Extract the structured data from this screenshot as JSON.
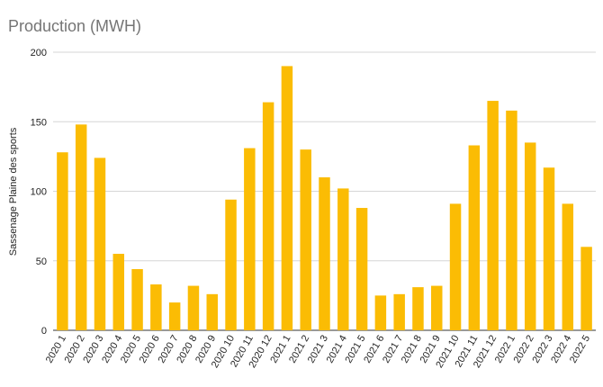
{
  "chart_data": {
    "type": "bar",
    "title": "Production (MWH)",
    "ylabel": "Sassenage Plaine des sports",
    "xlabel": "",
    "ylim": [
      0,
      200
    ],
    "yticks": [
      0,
      50,
      100,
      150,
      200
    ],
    "grid": true,
    "color": "#FBBC04",
    "categories": [
      "2020 1",
      "2020 2",
      "2020 3",
      "2020 4",
      "2020 5",
      "2020 6",
      "2020 7",
      "2020 8",
      "2020 9",
      "2020 10",
      "2020 11",
      "2020 12",
      "2021 1",
      "2021 2",
      "2021 3",
      "2021 4",
      "2021 5",
      "2021 6",
      "2021 7",
      "2021 8",
      "2021 9",
      "2021 10",
      "2021 11",
      "2021 12",
      "2022 1",
      "2022 2",
      "2022 3",
      "2022 4",
      "2022 5"
    ],
    "values": [
      128,
      148,
      124,
      55,
      44,
      33,
      20,
      32,
      26,
      94,
      131,
      164,
      190,
      130,
      110,
      102,
      88,
      25,
      26,
      31,
      32,
      91,
      133,
      165,
      158,
      135,
      117,
      91,
      60
    ]
  }
}
